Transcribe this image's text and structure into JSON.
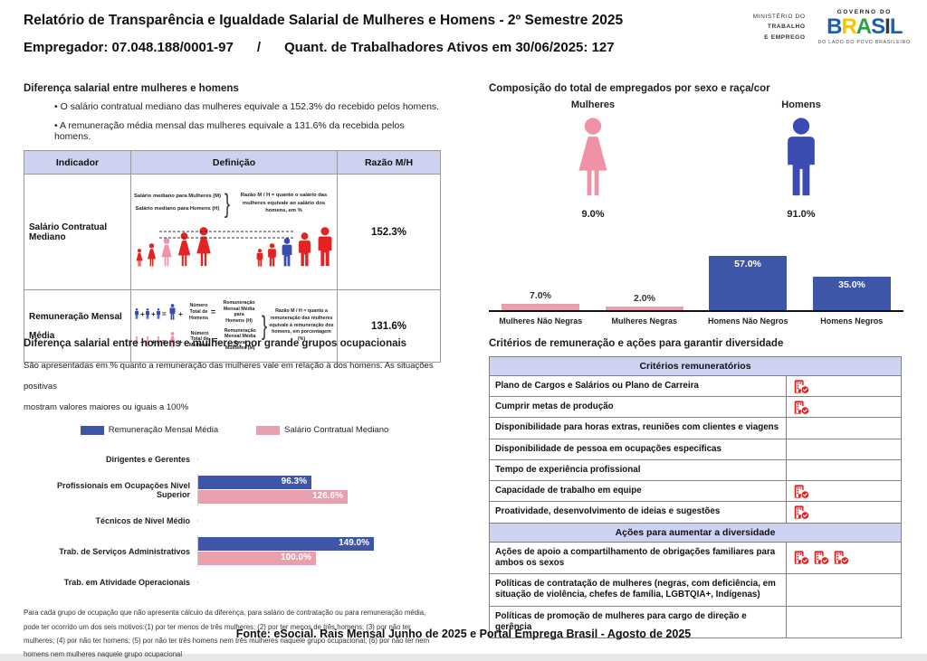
{
  "header": {
    "title": "Relatório de Transparência e Igualdade Salarial de Mulheres e Homens - 2º Semestre 2025",
    "employer": "Empregador: 07.048.188/0001-97",
    "separator": "/",
    "workers": "Quant. de Trabalhadores Ativos em 30/06/2025: 127",
    "ministry": [
      "MINISTÉRIO DO",
      "TRABALHO",
      "E EMPREGO"
    ],
    "gov": {
      "top": "GOVERNO DO",
      "brand": "BRASIL",
      "brand_letter_colors": [
        "#1f5dad",
        "#f7c500",
        "#2e9e49",
        "#1f5dad",
        "#3a3a3a",
        "#1f5dad"
      ],
      "tagline": "DO LADO DO POVO BRASILEIRO"
    }
  },
  "salary_gap": {
    "heading": "Diferença salarial entre mulheres e homens",
    "bullets": [
      "O salário contratual mediano das mulheres equivale a 152.3% do recebido pelos homens.",
      "A remuneração média mensal das mulheres equivale a 131.6% da recebida pelos homens."
    ],
    "table": {
      "headers": [
        "Indicador",
        "Definição",
        "Razão M/H"
      ],
      "row_median": {
        "indicator": "Salário Contratual Mediano",
        "def_line1": "Salário mediano para Mulheres (M)",
        "def_line2": "Salário mediano para Homens (H)",
        "note": "Razão M / H = quanto o salário das mulheres equivale ao salário dos homens, em %",
        "ratio": "152.3%"
      },
      "row_mean": {
        "indicator_line1": "Remuneração Mensal",
        "indicator_line2": "Média",
        "men_divisor": [
          "Número",
          "Total de",
          "Homens"
        ],
        "men_result": [
          "Remuneração",
          "Mensal Média para",
          "Homens (H)"
        ],
        "women_divisor": [
          "Número",
          "Total de",
          "Mulheres"
        ],
        "women_result": [
          "Remuneração",
          "Mensal Média para",
          "Mulheres (M)"
        ],
        "note": "Razão M / H = quanto a remuneração das mulheres equivale à remuneração dos homens, em porcentagem (%)",
        "ratio": "131.6%"
      }
    }
  },
  "composition": {
    "heading": "Composição do total de empregados por sexo e raça/cor",
    "groups": [
      {
        "label": "Mulheres",
        "value": "9.0%",
        "icon": "female-icon"
      },
      {
        "label": "Homens",
        "value": "91.0%",
        "icon": "male-icon"
      }
    ]
  },
  "occupational": {
    "heading": "Diferença salarial entre homens e mulheres, por grande grupos ocupacionais",
    "subtitle_line1": "São apresentadas em % quanto a remuneração das mulheres vale em relação à dos homens. As situações positivas",
    "subtitle_line2": "mostram valores maiores ou iguais a 100%",
    "footnote": "Para cada grupo de ocupação que não apresenta cálculo da diferença, para salário de contratação ou para remuneração média, pode ter ocorrido um dos seis motivos:(1) por ter menos de três mulheres; (2) por ter menos de três homens; (3) por não ter mulheres; (4) por não ter homens; (5) por não ter três homens nem três mulheres naquele grupo ocupacional; (6) por não ter nem homens nem mulheres naquele grupo ocupacional"
  },
  "criteria": {
    "heading": "Critérios de remuneração e ações para garantir diversidade",
    "sections": [
      {
        "title": "Critérios remuneratórios",
        "rows": [
          {
            "label": "Plano de Cargos e Salários ou Plano de Carreira",
            "icon_count": 1
          },
          {
            "label": "Cumprir metas de produção",
            "icon_count": 1
          },
          {
            "label": "Disponibilidade para horas extras, reuniões com clientes e viagens",
            "icon_count": 0
          },
          {
            "label": "Disponibilidade de pessoa em ocupações específicas",
            "icon_count": 0
          },
          {
            "label": "Tempo de experiência profissional",
            "icon_count": 0
          },
          {
            "label": "Capacidade de trabalho em equipe",
            "icon_count": 1
          },
          {
            "label": "Proatividade, desenvolvimento de ideias e sugestões",
            "icon_count": 1
          }
        ]
      },
      {
        "title": "Ações para aumentar a diversidade",
        "rows": [
          {
            "label": "Ações de apoio a compartilhamento de obrigações familiares para ambos os sexos",
            "icon_count": 3
          },
          {
            "label": "Políticas de contratação de mulheres (negras, com deficiência, em situação de violência, chefes de família, LGBTQIA+, Indígenas)",
            "icon_count": 0
          },
          {
            "label": "Políticas de promoção de mulheres para cargo de direção e gerência",
            "icon_count": 0
          }
        ]
      }
    ]
  },
  "footer": {
    "source": "Fonte: eSocial. Rais Mensal Junho de 2025 e Portal Emprega Brasil - Agosto de 2025"
  },
  "colors": {
    "blue": "#3d56a8",
    "pink": "#e9a0ac",
    "icon_pink": "#ef92a5",
    "icon_blue": "#3a4cb1",
    "lavender": "#ccd2f0",
    "icon_red": "#e01f1f",
    "figure_red": "#e32222"
  },
  "chart_data": [
    {
      "type": "bar",
      "title": "Composição do total de empregados por sexo e raça/cor",
      "categories": [
        "Mulheres Não Negras",
        "Mulheres Negras",
        "Homens Não Negros",
        "Homens Negros"
      ],
      "values": [
        7.0,
        2.0,
        57.0,
        35.0
      ],
      "value_labels": [
        "7.0%",
        "2.0%",
        "57.0%",
        "35.0%"
      ],
      "bar_colors": [
        "#e9a0ac",
        "#e9a0ac",
        "#3d56a8",
        "#3d56a8"
      ],
      "extra_totals": {
        "Mulheres": 9.0,
        "Homens": 91.0
      },
      "xlabel": "",
      "ylabel": "",
      "ylim": [
        0,
        60
      ],
      "grid": false,
      "legend": "none"
    },
    {
      "type": "bar",
      "orientation": "horizontal",
      "title": "Diferença salarial entre homens e mulheres, por grande grupos ocupacionais",
      "categories": [
        "Dirigentes e Gerentes",
        "Profissionais em Ocupações Nível Superior",
        "Técnicos de Nível Médio",
        "Trab. de Serviços Administrativos",
        "Trab. em Atividade Operacionais"
      ],
      "series": [
        {
          "name": "Remuneração Mensal Média",
          "color": "#3d56a8",
          "values": [
            null,
            96.3,
            null,
            149.0,
            null
          ]
        },
        {
          "name": "Salário Contratual Mediano",
          "color": "#e9a0ac",
          "values": [
            null,
            126.6,
            null,
            100.0,
            null
          ]
        }
      ],
      "xlim": [
        0,
        160
      ],
      "grid": false,
      "legend_position": "top"
    }
  ]
}
